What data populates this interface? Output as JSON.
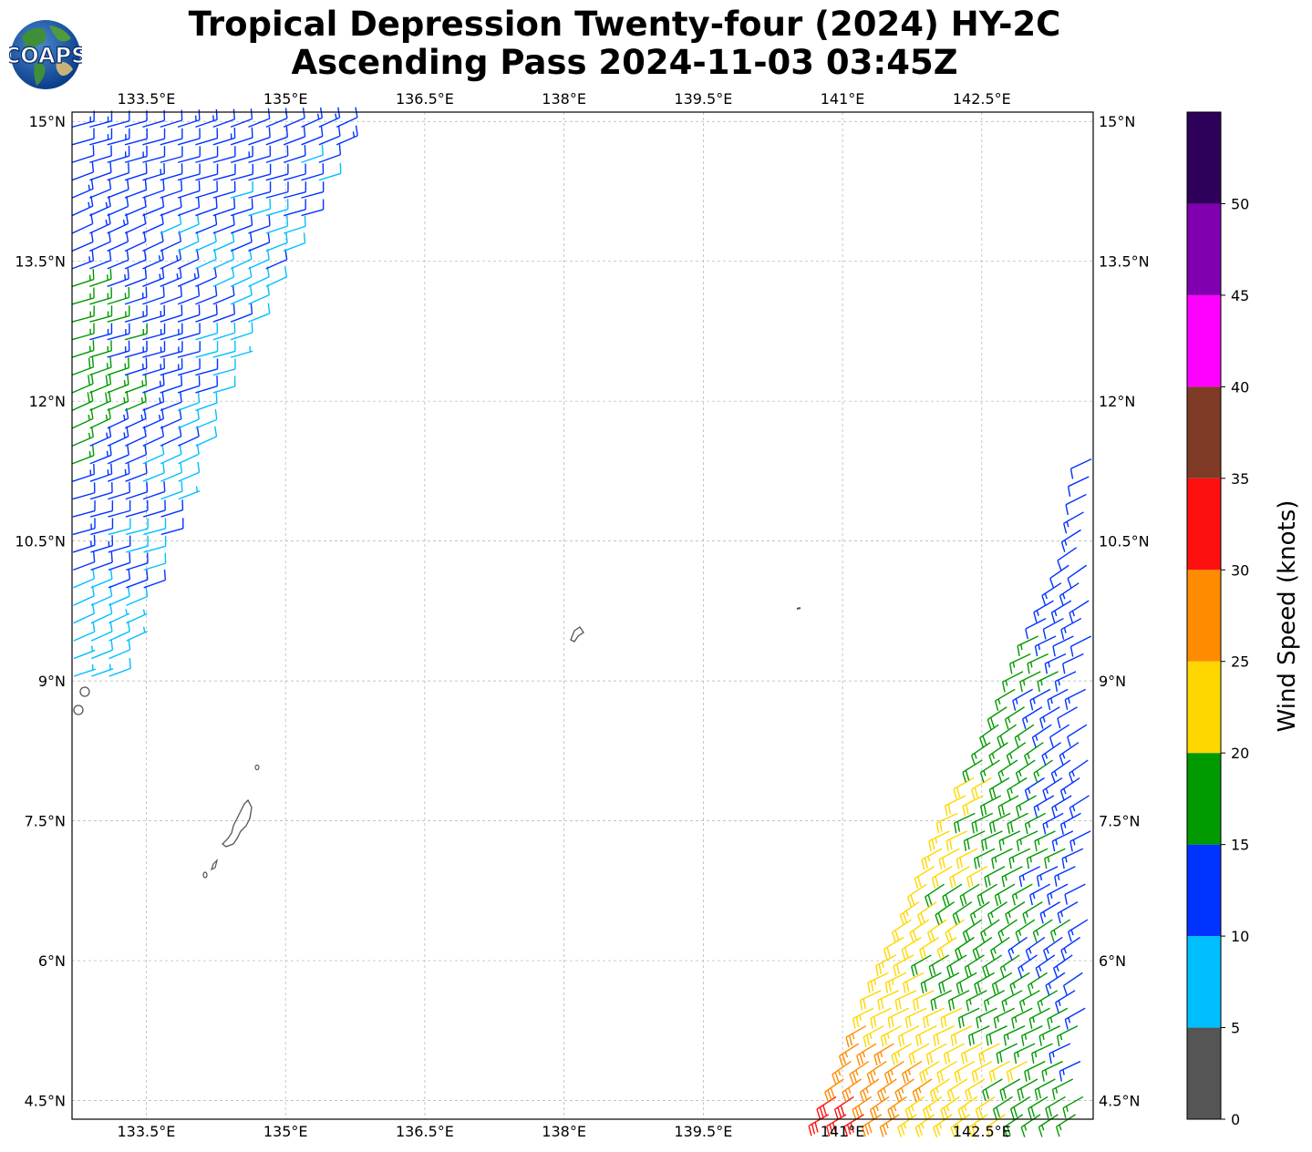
{
  "header": {
    "title_line1": "Tropical Depression Twenty-four (2024) HY-2C",
    "title_line2": "Ascending Pass 2024-11-03 03:45Z",
    "logo_text": "COAPS"
  },
  "map": {
    "lon_range": [
      132.7,
      143.7
    ],
    "lat_range": [
      4.3,
      15.1
    ],
    "lon_ticks": [
      {
        "v": 133.5,
        "label": "133.5°E"
      },
      {
        "v": 135.0,
        "label": "135°E"
      },
      {
        "v": 136.5,
        "label": "136.5°E"
      },
      {
        "v": 138.0,
        "label": "138°E"
      },
      {
        "v": 139.5,
        "label": "139.5°E"
      },
      {
        "v": 141.0,
        "label": "141°E"
      },
      {
        "v": 142.5,
        "label": "142.5°E"
      }
    ],
    "lat_ticks": [
      {
        "v": 15.0,
        "label": "15°N"
      },
      {
        "v": 13.5,
        "label": "13.5°N"
      },
      {
        "v": 12.0,
        "label": "12°N"
      },
      {
        "v": 10.5,
        "label": "10.5°N"
      },
      {
        "v": 9.0,
        "label": "9°N"
      },
      {
        "v": 7.5,
        "label": "7.5°N"
      },
      {
        "v": 6.0,
        "label": "6°N"
      },
      {
        "v": 4.5,
        "label": "4.5°N"
      }
    ],
    "gridlines": true,
    "coast_color": "#555555"
  },
  "colorbar": {
    "label": "Wind Speed (knots)",
    "ticks": [
      "0",
      "5",
      "10",
      "15",
      "20",
      "25",
      "30",
      "35",
      "40",
      "45",
      "50"
    ],
    "bins": [
      {
        "from": 0,
        "to": 5,
        "color": "#555555"
      },
      {
        "from": 5,
        "to": 10,
        "color": "#00bfff"
      },
      {
        "from": 10,
        "to": 15,
        "color": "#0033ff"
      },
      {
        "from": 15,
        "to": 20,
        "color": "#009900"
      },
      {
        "from": 20,
        "to": 25,
        "color": "#ffd700"
      },
      {
        "from": 25,
        "to": 30,
        "color": "#ff8c00"
      },
      {
        "from": 30,
        "to": 35,
        "color": "#ff1010"
      },
      {
        "from": 35,
        "to": 40,
        "color": "#7f3b26"
      },
      {
        "from": 40,
        "to": 45,
        "color": "#ff00ff"
      },
      {
        "from": 45,
        "to": 50,
        "color": "#8000b0"
      },
      {
        "from": 50,
        "to": 55,
        "color": "#2d005a"
      }
    ]
  },
  "wind_swaths": [
    {
      "name": "west",
      "lat_range": [
        9.05,
        15.05
      ],
      "dir_deg": 70,
      "edge_w": [
        [
          15.05,
          132.7
        ],
        [
          12.0,
          132.7
        ],
        [
          9.05,
          132.72
        ]
      ],
      "edge_e": [
        [
          15.05,
          135.75
        ],
        [
          13.5,
          134.95
        ],
        [
          12.0,
          134.25
        ],
        [
          10.5,
          133.7
        ],
        [
          9.05,
          133.2
        ]
      ],
      "speed_profile": [
        {
          "lat": 15.0,
          "w": 12,
          "e": 12
        },
        {
          "lat": 13.6,
          "w": 12,
          "e": 9
        },
        {
          "lat": 13.2,
          "w": 16,
          "e": 8
        },
        {
          "lat": 12.4,
          "w": 17,
          "e": 8
        },
        {
          "lat": 12.0,
          "w": 20,
          "e": 8
        },
        {
          "lat": 11.5,
          "w": 16,
          "e": 8
        },
        {
          "lat": 11.0,
          "w": 12,
          "e": 8
        },
        {
          "lat": 10.2,
          "w": 12,
          "e": 10
        },
        {
          "lat": 9.6,
          "w": 8,
          "e": 8
        },
        {
          "lat": 9.05,
          "w": 8,
          "e": 8
        }
      ]
    },
    {
      "name": "east",
      "lat_range": [
        4.35,
        11.5
      ],
      "dir_deg": 240,
      "edge_w": [
        [
          4.35,
          140.85
        ],
        [
          6.0,
          141.55
        ],
        [
          7.5,
          142.2
        ],
        [
          9.0,
          142.9
        ],
        [
          10.5,
          143.55
        ],
        [
          11.5,
          143.7
        ]
      ],
      "edge_e": [
        [
          4.35,
          143.6
        ],
        [
          6.0,
          143.65
        ],
        [
          9.0,
          143.7
        ],
        [
          11.5,
          143.7
        ]
      ],
      "speed_profile": [
        {
          "lat": 4.4,
          "w": 31,
          "e": 16
        },
        {
          "lat": 4.9,
          "w": 28,
          "e": 16
        },
        {
          "lat": 5.6,
          "w": 23,
          "e": 13
        },
        {
          "lat": 6.6,
          "w": 22,
          "e": 13
        },
        {
          "lat": 7.6,
          "w": 22,
          "e": 13
        },
        {
          "lat": 8.4,
          "w": 18,
          "e": 12
        },
        {
          "lat": 9.2,
          "w": 16,
          "e": 12
        },
        {
          "lat": 10.0,
          "w": 12,
          "e": 12
        },
        {
          "lat": 11.5,
          "w": 12,
          "e": 12
        }
      ]
    }
  ]
}
